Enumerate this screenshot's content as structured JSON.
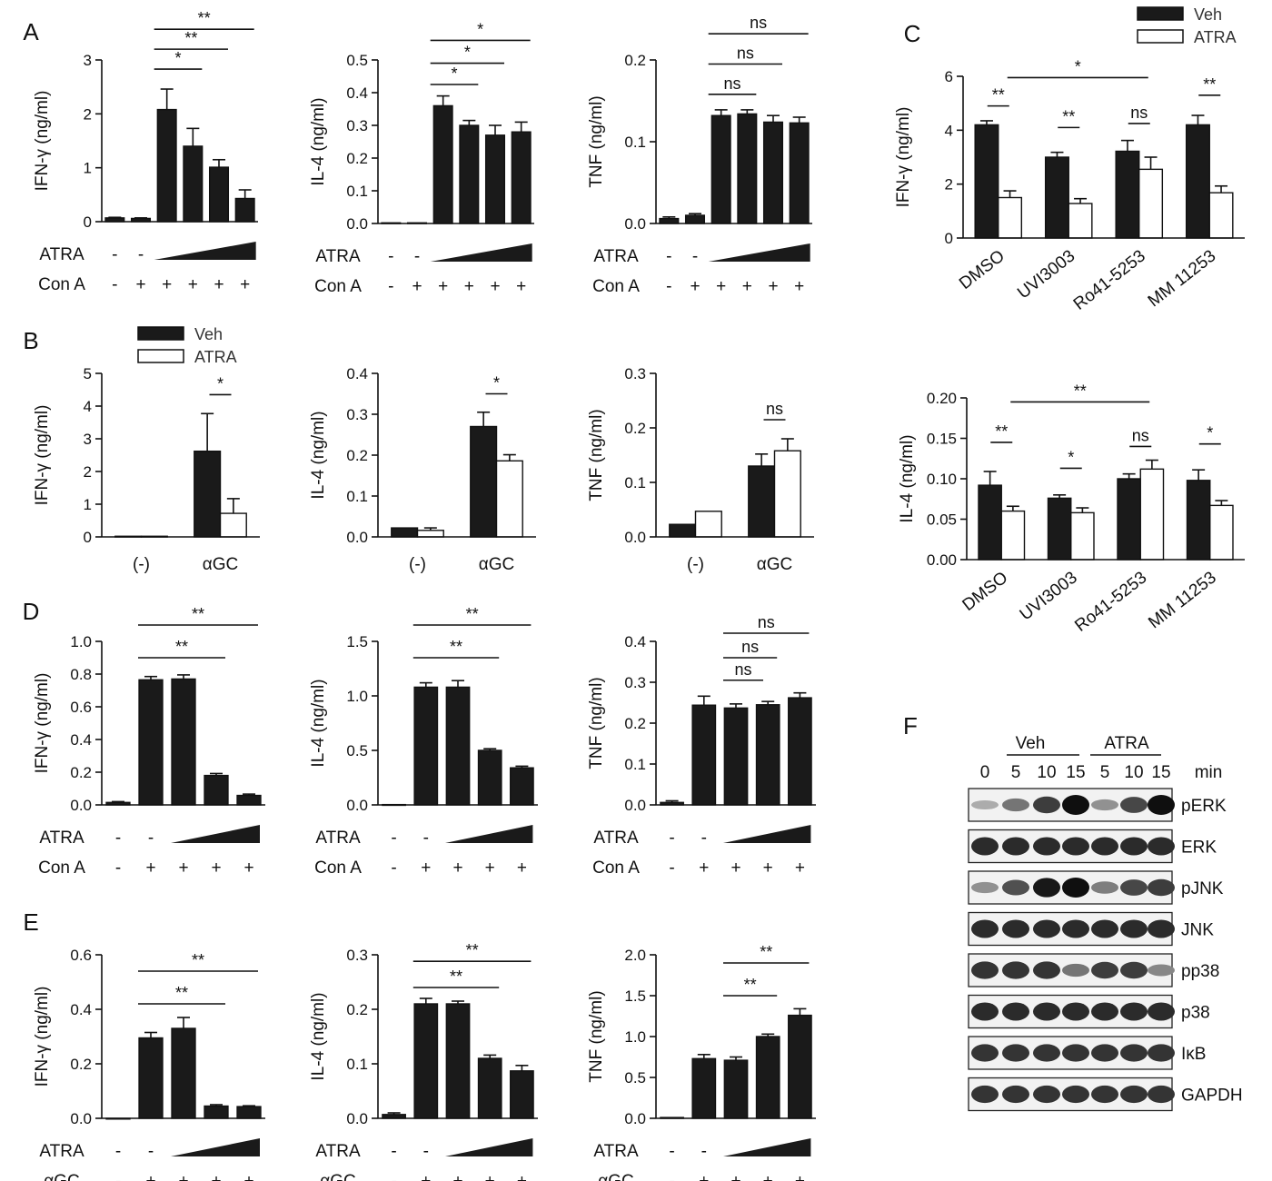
{
  "panel_letters": [
    "A",
    "B",
    "C",
    "D",
    "E",
    "F"
  ],
  "chart_data": [
    {
      "id": "A1",
      "panel": "A",
      "type": "bar",
      "ylabel": "IFN-γ (ng/ml)",
      "ylim": [
        0,
        3
      ],
      "yticks": [
        "0",
        "1",
        "2",
        "3"
      ],
      "values": [
        0.07,
        0.06,
        2.08,
        1.4,
        1.01,
        0.43
      ],
      "errors": [
        0.01,
        0.01,
        0.38,
        0.33,
        0.14,
        0.16
      ],
      "conditions": [
        {
          "label": "ATRA",
          "marks": [
            "-",
            "-",
            "",
            "",
            "",
            ""
          ]
        },
        {
          "label": "Con A",
          "marks": [
            "-",
            "+",
            "+",
            "+",
            "+",
            "+"
          ]
        }
      ],
      "wedge": [
        2,
        5
      ],
      "comparisons": [
        {
          "from": 2,
          "to": 3,
          "label": "*",
          "y": 2.83
        },
        {
          "from": 2,
          "to": 4,
          "label": "**",
          "y": 3.2
        },
        {
          "from": 2,
          "to": 5,
          "label": "**",
          "y": 3.57
        }
      ]
    },
    {
      "id": "A2",
      "panel": "A",
      "type": "bar",
      "ylabel": "IL-4 (ng/ml)",
      "ylim": [
        0,
        0.5
      ],
      "yticks": [
        "0.0",
        "0.1",
        "0.2",
        "0.3",
        "0.4",
        "0.5"
      ],
      "values": [
        0.002,
        0.002,
        0.36,
        0.3,
        0.27,
        0.28
      ],
      "errors": [
        0,
        0,
        0.03,
        0.015,
        0.03,
        0.03
      ],
      "conditions": [
        {
          "label": "ATRA",
          "marks": [
            "-",
            "-",
            "",
            "",
            "",
            ""
          ]
        },
        {
          "label": "Con A",
          "marks": [
            "-",
            "+",
            "+",
            "+",
            "+",
            "+"
          ]
        }
      ],
      "wedge": [
        2,
        5
      ],
      "comparisons": [
        {
          "from": 2,
          "to": 3,
          "label": "*",
          "y": 0.425
        },
        {
          "from": 2,
          "to": 4,
          "label": "*",
          "y": 0.49
        },
        {
          "from": 2,
          "to": 5,
          "label": "*",
          "y": 0.56
        }
      ]
    },
    {
      "id": "A3",
      "panel": "A",
      "type": "bar",
      "ylabel": "TNF (ng/ml)",
      "ylim": [
        0,
        0.2
      ],
      "yticks": [
        "0.0",
        "0.1",
        "0.2"
      ],
      "values": [
        0.006,
        0.01,
        0.132,
        0.134,
        0.124,
        0.123
      ],
      "errors": [
        0.002,
        0.002,
        0.007,
        0.005,
        0.008,
        0.007
      ],
      "conditions": [
        {
          "label": "ATRA",
          "marks": [
            "-",
            "-",
            "",
            "",
            "",
            ""
          ]
        },
        {
          "label": "Con A",
          "marks": [
            "-",
            "+",
            "+",
            "+",
            "+",
            "+"
          ]
        }
      ],
      "wedge": [
        2,
        5
      ],
      "comparisons": [
        {
          "from": 2,
          "to": 3,
          "label": "ns",
          "y": 0.158
        },
        {
          "from": 2,
          "to": 4,
          "label": "ns",
          "y": 0.195
        },
        {
          "from": 2,
          "to": 5,
          "label": "ns",
          "y": 0.232
        }
      ]
    },
    {
      "id": "B1",
      "panel": "B",
      "type": "bar",
      "ylabel": "IFN-γ (ng/ml)",
      "ylim": [
        0,
        5
      ],
      "yticks": [
        "0",
        "1",
        "2",
        "3",
        "4",
        "5"
      ],
      "categories": [
        "(-)",
        "αGC"
      ],
      "series": [
        {
          "name": "Veh",
          "values": [
            0.02,
            2.62
          ],
          "errors": [
            0,
            1.15
          ]
        },
        {
          "name": "ATRA",
          "values": [
            0.02,
            0.72
          ],
          "errors": [
            0,
            0.45
          ]
        }
      ],
      "comparisons": [
        {
          "category": 1,
          "label": "*",
          "y": 4.35
        }
      ]
    },
    {
      "id": "B2",
      "panel": "B",
      "type": "bar",
      "ylabel": "IL-4 (ng/ml)",
      "ylim": [
        0,
        0.4
      ],
      "yticks": [
        "0.0",
        "0.1",
        "0.2",
        "0.3",
        "0.4"
      ],
      "categories": [
        "(-)",
        "αGC"
      ],
      "series": [
        {
          "name": "Veh",
          "values": [
            0.022,
            0.27
          ],
          "errors": [
            0,
            0.035
          ]
        },
        {
          "name": "ATRA",
          "values": [
            0.016,
            0.186
          ],
          "errors": [
            0.006,
            0.015
          ]
        }
      ],
      "comparisons": [
        {
          "category": 1,
          "label": "*",
          "y": 0.35
        }
      ]
    },
    {
      "id": "B3",
      "panel": "B",
      "type": "bar",
      "ylabel": "TNF (ng/ml)",
      "ylim": [
        0,
        0.3
      ],
      "yticks": [
        "0.0",
        "0.1",
        "0.2",
        "0.3"
      ],
      "categories": [
        "(-)",
        "αGC"
      ],
      "series": [
        {
          "name": "Veh",
          "values": [
            0.023,
            0.13
          ],
          "errors": [
            0,
            0.022
          ]
        },
        {
          "name": "ATRA",
          "values": [
            0.047,
            0.158
          ],
          "errors": [
            0,
            0.022
          ]
        }
      ],
      "comparisons": [
        {
          "category": 1,
          "label": "ns",
          "y": 0.215
        }
      ]
    },
    {
      "id": "C1",
      "panel": "C",
      "type": "bar",
      "ylabel": "IFN-γ (ng/ml)",
      "ylim": [
        0,
        6
      ],
      "yticks": [
        "0",
        "2",
        "4",
        "6"
      ],
      "categories": [
        "DMSO",
        "UVI3003",
        "Ro41-5253",
        "MM 11253"
      ],
      "series": [
        {
          "name": "Veh",
          "values": [
            4.2,
            3.0,
            3.22,
            4.2
          ],
          "errors": [
            0.15,
            0.18,
            0.4,
            0.35
          ]
        },
        {
          "name": "ATRA",
          "values": [
            1.5,
            1.28,
            2.55,
            1.68
          ],
          "errors": [
            0.25,
            0.18,
            0.45,
            0.25
          ]
        }
      ],
      "comparisons": [
        {
          "category": 0,
          "label": "**",
          "y": 4.9
        },
        {
          "category": 1,
          "label": "**",
          "y": 4.1
        },
        {
          "category": 2,
          "label": "ns",
          "y": 4.25
        },
        {
          "category": 3,
          "label": "**",
          "y": 5.3
        },
        {
          "from_category": 0,
          "to_category": 2,
          "label": "*",
          "y": 5.95
        }
      ]
    },
    {
      "id": "C2",
      "panel": "C",
      "type": "bar",
      "ylabel": "IL-4 (ng/ml)",
      "ylim": [
        0,
        0.2
      ],
      "yticks": [
        "0.00",
        "0.05",
        "0.10",
        "0.15",
        "0.20"
      ],
      "categories": [
        "DMSO",
        "UVI3003",
        "Ro41-5253",
        "MM 11253"
      ],
      "series": [
        {
          "name": "Veh",
          "values": [
            0.092,
            0.076,
            0.1,
            0.098
          ],
          "errors": [
            0.017,
            0.004,
            0.006,
            0.013
          ]
        },
        {
          "name": "ATRA",
          "values": [
            0.06,
            0.058,
            0.112,
            0.067
          ],
          "errors": [
            0.006,
            0.006,
            0.011,
            0.006
          ]
        }
      ],
      "comparisons": [
        {
          "category": 0,
          "label": "**",
          "y": 0.145
        },
        {
          "category": 1,
          "label": "*",
          "y": 0.113
        },
        {
          "category": 2,
          "label": "ns",
          "y": 0.14
        },
        {
          "category": 3,
          "label": "*",
          "y": 0.143
        },
        {
          "from_category": 0,
          "to_category": 2,
          "label": "**",
          "y": 0.195
        }
      ]
    },
    {
      "id": "D1",
      "panel": "D",
      "type": "bar",
      "ylabel": "IFN-γ (ng/ml)",
      "ylim": [
        0,
        1.0
      ],
      "yticks": [
        "0.0",
        "0.2",
        "0.4",
        "0.6",
        "0.8",
        "1.0"
      ],
      "values": [
        0.015,
        0.765,
        0.77,
        0.18,
        0.058
      ],
      "errors": [
        0.005,
        0.02,
        0.025,
        0.012,
        0.008
      ],
      "conditions": [
        {
          "label": "ATRA",
          "marks": [
            "-",
            "-",
            "",
            "",
            ""
          ]
        },
        {
          "label": "Con A",
          "marks": [
            "-",
            "+",
            "+",
            "+",
            "+"
          ]
        }
      ],
      "wedge": [
        2,
        4
      ],
      "comparisons": [
        {
          "from": 1,
          "to": 3,
          "label": "**",
          "y": 0.9
        },
        {
          "from": 1,
          "to": 4,
          "label": "**",
          "y": 1.1
        }
      ]
    },
    {
      "id": "D2",
      "panel": "D",
      "type": "bar",
      "ylabel": "IL-4 (ng/ml)",
      "ylim": [
        0,
        1.5
      ],
      "yticks": [
        "0.0",
        "0.5",
        "1.0",
        "1.5"
      ],
      "values": [
        0.003,
        1.08,
        1.08,
        0.5,
        0.34
      ],
      "errors": [
        0,
        0.04,
        0.06,
        0.015,
        0.015
      ],
      "conditions": [
        {
          "label": "ATRA",
          "marks": [
            "-",
            "-",
            "",
            "",
            ""
          ]
        },
        {
          "label": "Con A",
          "marks": [
            "-",
            "+",
            "+",
            "+",
            "+"
          ]
        }
      ],
      "wedge": [
        2,
        4
      ],
      "comparisons": [
        {
          "from": 1,
          "to": 3,
          "label": "**",
          "y": 1.35
        },
        {
          "from": 1,
          "to": 4,
          "label": "**",
          "y": 1.65
        }
      ]
    },
    {
      "id": "D3",
      "panel": "D",
      "type": "bar",
      "ylabel": "TNF (ng/ml)",
      "ylim": [
        0,
        0.4
      ],
      "yticks": [
        "0.0",
        "0.1",
        "0.2",
        "0.3",
        "0.4"
      ],
      "values": [
        0.006,
        0.244,
        0.237,
        0.245,
        0.262
      ],
      "errors": [
        0.004,
        0.022,
        0.01,
        0.008,
        0.012
      ],
      "conditions": [
        {
          "label": "ATRA",
          "marks": [
            "-",
            "-",
            "",
            "",
            ""
          ]
        },
        {
          "label": "Con A",
          "marks": [
            "-",
            "+",
            "+",
            "+",
            "+"
          ]
        }
      ],
      "wedge": [
        2,
        4
      ],
      "comparisons": [
        {
          "from": 2,
          "to": 2,
          "label": "ns",
          "y": 0.305
        },
        {
          "from": 2,
          "to": 3,
          "label": "ns",
          "y": 0.36
        },
        {
          "from": 2,
          "to": 4,
          "label": "ns",
          "y": 0.42
        }
      ]
    },
    {
      "id": "E1",
      "panel": "E",
      "type": "bar",
      "ylabel": "IFN-γ (ng/ml)",
      "ylim": [
        0,
        0.6
      ],
      "yticks": [
        "0.0",
        "0.2",
        "0.4",
        "0.6"
      ],
      "values": [
        0.0,
        0.295,
        0.33,
        0.045,
        0.043
      ],
      "errors": [
        0,
        0.02,
        0.04,
        0.005,
        0.003
      ],
      "conditions": [
        {
          "label": "ATRA",
          "marks": [
            "-",
            "-",
            "",
            "",
            ""
          ]
        },
        {
          "label": "αGC",
          "marks": [
            "-",
            "+",
            "+",
            "+",
            "+"
          ]
        }
      ],
      "wedge": [
        2,
        4
      ],
      "comparisons": [
        {
          "from": 1,
          "to": 3,
          "label": "**",
          "y": 0.42
        },
        {
          "from": 1,
          "to": 4,
          "label": "**",
          "y": 0.54
        }
      ]
    },
    {
      "id": "E2",
      "panel": "E",
      "type": "bar",
      "ylabel": "IL-4 (ng/ml)",
      "ylim": [
        0,
        0.3
      ],
      "yticks": [
        "0.0",
        "0.1",
        "0.2",
        "0.3"
      ],
      "values": [
        0.007,
        0.21,
        0.21,
        0.11,
        0.087
      ],
      "errors": [
        0.003,
        0.01,
        0.005,
        0.006,
        0.01
      ],
      "conditions": [
        {
          "label": "ATRA",
          "marks": [
            "-",
            "-",
            "",
            "",
            ""
          ]
        },
        {
          "label": "αGC",
          "marks": [
            "-",
            "+",
            "+",
            "+",
            "+"
          ]
        }
      ],
      "wedge": [
        2,
        4
      ],
      "comparisons": [
        {
          "from": 1,
          "to": 3,
          "label": "**",
          "y": 0.24
        },
        {
          "from": 1,
          "to": 4,
          "label": "**",
          "y": 0.288
        }
      ]
    },
    {
      "id": "E3",
      "panel": "E",
      "type": "bar",
      "ylabel": "TNF (ng/ml)",
      "ylim": [
        0,
        2.0
      ],
      "yticks": [
        "0.0",
        "0.5",
        "1.0",
        "1.5",
        "2.0"
      ],
      "values": [
        0.01,
        0.73,
        0.71,
        1.0,
        1.26
      ],
      "errors": [
        0,
        0.05,
        0.04,
        0.03,
        0.08
      ],
      "conditions": [
        {
          "label": "ATRA",
          "marks": [
            "-",
            "-",
            "",
            "",
            ""
          ]
        },
        {
          "label": "αGC",
          "marks": [
            "-",
            "+",
            "+",
            "+",
            "+"
          ]
        }
      ],
      "wedge": [
        2,
        4
      ],
      "comparisons": [
        {
          "from": 2,
          "to": 3,
          "label": "**",
          "y": 1.5
        },
        {
          "from": 2,
          "to": 4,
          "label": "**",
          "y": 1.9
        }
      ]
    }
  ],
  "legends": [
    {
      "panel": "B",
      "items": [
        {
          "name": "Veh",
          "fill": "#1a1a1a"
        },
        {
          "name": "ATRA",
          "fill": "#ffffff"
        }
      ]
    },
    {
      "panel": "C",
      "items": [
        {
          "name": "Veh",
          "fill": "#1a1a1a"
        },
        {
          "name": "ATRA",
          "fill": "#ffffff"
        }
      ]
    }
  ],
  "western_blot": {
    "panel": "F",
    "group_labels": [
      "Veh",
      "ATRA"
    ],
    "lane_labels": [
      "0",
      "5",
      "10",
      "15",
      "5",
      "10",
      "15"
    ],
    "unit": "min",
    "rows": [
      {
        "label": "pERK",
        "intensity": [
          0.15,
          0.45,
          0.75,
          1.0,
          0.3,
          0.7,
          1.0
        ]
      },
      {
        "label": "ERK",
        "intensity": [
          0.85,
          0.85,
          0.85,
          0.85,
          0.85,
          0.85,
          0.85
        ]
      },
      {
        "label": "pJNK",
        "intensity": [
          0.3,
          0.65,
          0.95,
          1.0,
          0.4,
          0.7,
          0.75
        ]
      },
      {
        "label": "JNK",
        "intensity": [
          0.85,
          0.85,
          0.85,
          0.85,
          0.85,
          0.85,
          0.85
        ]
      },
      {
        "label": "pp38",
        "intensity": [
          0.8,
          0.8,
          0.8,
          0.45,
          0.75,
          0.75,
          0.35
        ]
      },
      {
        "label": "p38",
        "intensity": [
          0.85,
          0.85,
          0.85,
          0.85,
          0.85,
          0.85,
          0.85
        ]
      },
      {
        "label": "IκB",
        "intensity": [
          0.8,
          0.8,
          0.8,
          0.8,
          0.8,
          0.8,
          0.8
        ]
      },
      {
        "label": "GAPDH",
        "intensity": [
          0.8,
          0.8,
          0.8,
          0.8,
          0.8,
          0.8,
          0.8
        ]
      }
    ]
  }
}
